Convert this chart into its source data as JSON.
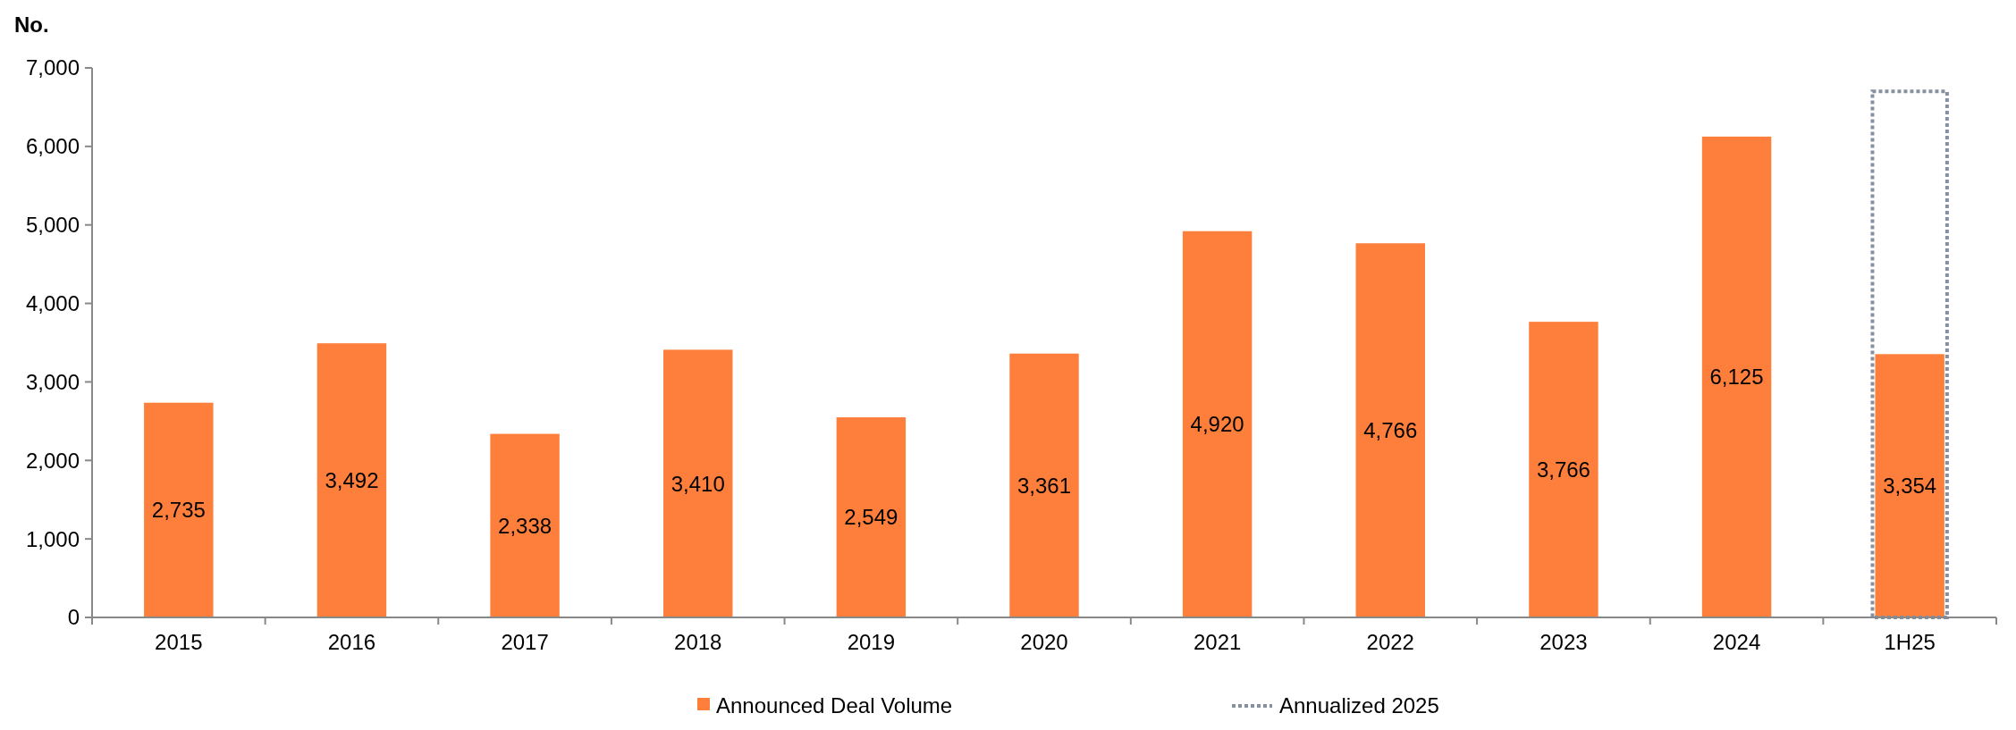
{
  "chart_data": {
    "type": "bar",
    "ylabel": "No.",
    "categories": [
      "2015",
      "2016",
      "2017",
      "2018",
      "2019",
      "2020",
      "2021",
      "2022",
      "2023",
      "2024",
      "1H25"
    ],
    "series": [
      {
        "name": "Announced Deal Volume",
        "color": "#fe7f3b",
        "values": [
          2735,
          3492,
          2338,
          3410,
          2549,
          3361,
          4920,
          4766,
          3766,
          6125,
          3354
        ],
        "value_labels": [
          "2,735",
          "3,492",
          "2,338",
          "3,410",
          "2,549",
          "3,361",
          "4,920",
          "4,766",
          "3,766",
          "6,125",
          "3,354"
        ]
      },
      {
        "name": "Annualized 2025",
        "type": "bar",
        "color": "#8591a0",
        "line_style": "dotted",
        "values": [
          null,
          null,
          null,
          null,
          null,
          null,
          null,
          null,
          null,
          null,
          6700
        ]
      }
    ],
    "ylim": [
      0,
      7000
    ],
    "yticks": [
      0,
      {
        "value": 1000,
        "label": "1,000"
      },
      {
        "value": 2000,
        "label": "2,000"
      },
      {
        "value": 3000,
        "label": "3,000"
      },
      {
        "value": 4000,
        "label": "4,000"
      },
      {
        "value": 5000,
        "label": "5,000"
      },
      {
        "value": 6000,
        "label": "6,000"
      },
      {
        "value": 7000,
        "label": "7,000"
      }
    ],
    "grid": false,
    "legend": "bottom"
  }
}
